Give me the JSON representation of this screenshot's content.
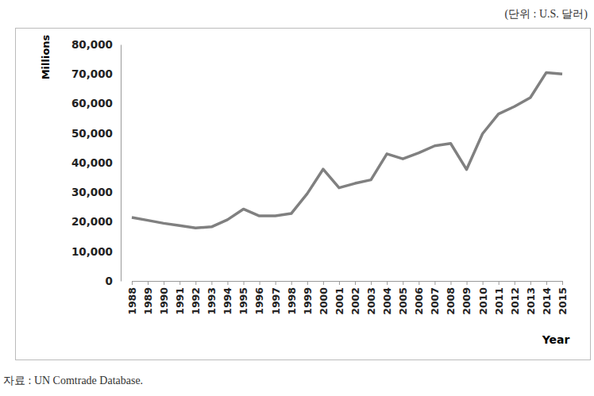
{
  "chart_data": {
    "type": "line",
    "x_label": "Year",
    "y_label": "Millions",
    "unit": "(단위 : U.S. 달러)",
    "source": "자료 : UN Comtrade Database.",
    "categories": [
      "1988",
      "1989",
      "1990",
      "1991",
      "1992",
      "1993",
      "1994",
      "1995",
      "1996",
      "1997",
      "1998",
      "1999",
      "2000",
      "2001",
      "2002",
      "2003",
      "2004",
      "2005",
      "2006",
      "2007",
      "2008",
      "2009",
      "2010",
      "2011",
      "2012",
      "2013",
      "2014",
      "2015"
    ],
    "values": [
      21500,
      20500,
      19500,
      18700,
      17900,
      18300,
      20700,
      24300,
      22000,
      22000,
      22800,
      29500,
      37800,
      31500,
      33000,
      34200,
      43000,
      41300,
      43300,
      45700,
      46500,
      37700,
      49800,
      56500,
      59000,
      62000,
      70500,
      70000
    ],
    "color": "#808080",
    "ylim": [
      0,
      80000
    ],
    "yticks": [
      0,
      {
        "value": 10000,
        "label": "10,000"
      },
      {
        "value": 20000,
        "label": "20,000"
      },
      {
        "value": 30000,
        "label": "30,000"
      },
      {
        "value": 40000,
        "label": "40,000"
      },
      {
        "value": 50000,
        "label": "50,000"
      },
      {
        "value": 60000,
        "label": "60,000"
      },
      {
        "value": 70000,
        "label": "70,000"
      },
      {
        "value": 80000,
        "label": "80,000"
      }
    ],
    "grid": false
  }
}
